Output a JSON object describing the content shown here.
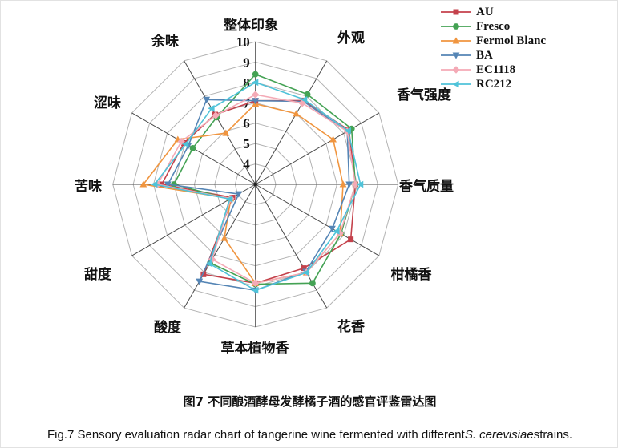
{
  "figure": {
    "caption_zh": "图7 不同酿酒酵母发酵橘子酒的感官评鉴雷达图",
    "caption_en_prefix": "Fig.7 Sensory evaluation radar chart of tangerine wine fermented with different",
    "caption_en_italic": "S. cerevisiae",
    "caption_en_suffix": "strains."
  },
  "chart_data": {
    "type": "radar",
    "title": "",
    "categories": [
      "整体印象",
      "外观",
      "香气强度",
      "香气质量",
      "柑橘香",
      "花香",
      "草本植物香",
      "酸度",
      "甜度",
      "苦味",
      "涩味",
      "余味"
    ],
    "radial_axis": {
      "center_value": 3,
      "max": 10,
      "tick_labels": [
        "4",
        "5",
        "6",
        "7",
        "8",
        "9",
        "10"
      ],
      "grid": true
    },
    "legend_position": "top-right",
    "series": [
      {
        "name": "AU",
        "color": "#c4414b",
        "marker": "square",
        "values": [
          7.1,
          7.75,
          8.3,
          7.9,
          8.4,
          7.75,
          7.85,
          8.1,
          4.3,
          7.6,
          7.05,
          6.95
        ]
      },
      {
        "name": "Fresco",
        "color": "#44a254",
        "marker": "circle",
        "values": [
          8.4,
          8.1,
          8.45,
          7.9,
          7.85,
          8.6,
          7.9,
          7.45,
          4.45,
          7.0,
          6.55,
          6.8
        ]
      },
      {
        "name": "Fermol Blanc",
        "color": "#f0953f",
        "marker": "triangle-up",
        "values": [
          6.95,
          7.0,
          7.4,
          7.3,
          7.8,
          8.0,
          7.85,
          6.05,
          4.4,
          8.5,
          7.4,
          5.9
        ]
      },
      {
        "name": "BA",
        "color": "#5585b5",
        "marker": "triangle-down",
        "values": [
          7.1,
          7.7,
          8.2,
          7.6,
          7.35,
          7.95,
          8.2,
          8.5,
          3.95,
          7.3,
          6.8,
          7.8
        ]
      },
      {
        "name": "EC1118",
        "color": "#f4aab6",
        "marker": "diamond",
        "values": [
          7.4,
          7.6,
          8.2,
          7.9,
          7.8,
          8.0,
          7.85,
          7.25,
          4.4,
          7.8,
          7.2,
          6.9
        ]
      },
      {
        "name": "RC212",
        "color": "#4fc3d9",
        "marker": "triangle-left",
        "values": [
          8.0,
          7.8,
          8.25,
          8.15,
          7.6,
          8.0,
          8.2,
          7.5,
          4.45,
          7.95,
          6.95,
          7.3
        ]
      }
    ]
  }
}
